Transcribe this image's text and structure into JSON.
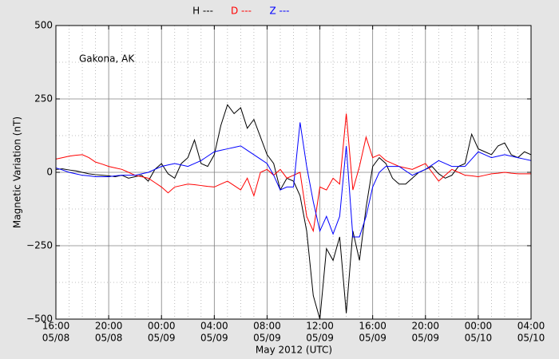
{
  "chart_data": {
    "type": "line",
    "annotation": "Gakona, AK",
    "ylabel": "Magnetic Variation (nT)",
    "xlabel": "May 2012 (UTC)",
    "grid": true,
    "x": [
      "2012-05-08T16:00",
      "2012-05-08T16:30",
      "2012-05-08T17:00",
      "2012-05-08T17:30",
      "2012-05-08T18:00",
      "2012-05-08T18:30",
      "2012-05-08T19:00",
      "2012-05-08T19:30",
      "2012-05-08T20:00",
      "2012-05-08T20:30",
      "2012-05-08T21:00",
      "2012-05-08T21:30",
      "2012-05-08T22:00",
      "2012-05-08T22:30",
      "2012-05-08T23:00",
      "2012-05-08T23:30",
      "2012-05-09T00:00",
      "2012-05-09T00:30",
      "2012-05-09T01:00",
      "2012-05-09T01:30",
      "2012-05-09T02:00",
      "2012-05-09T02:30",
      "2012-05-09T03:00",
      "2012-05-09T03:30",
      "2012-05-09T04:00",
      "2012-05-09T04:30",
      "2012-05-09T05:00",
      "2012-05-09T05:30",
      "2012-05-09T06:00",
      "2012-05-09T06:30",
      "2012-05-09T07:00",
      "2012-05-09T07:30",
      "2012-05-09T08:00",
      "2012-05-09T08:30",
      "2012-05-09T09:00",
      "2012-05-09T09:30",
      "2012-05-09T10:00",
      "2012-05-09T10:30",
      "2012-05-09T11:00",
      "2012-05-09T11:30",
      "2012-05-09T12:00",
      "2012-05-09T12:30",
      "2012-05-09T13:00",
      "2012-05-09T13:30",
      "2012-05-09T14:00",
      "2012-05-09T14:30",
      "2012-05-09T15:00",
      "2012-05-09T15:30",
      "2012-05-09T16:00",
      "2012-05-09T16:30",
      "2012-05-09T17:00",
      "2012-05-09T17:30",
      "2012-05-09T18:00",
      "2012-05-09T18:30",
      "2012-05-09T19:00",
      "2012-05-09T19:30",
      "2012-05-09T20:00",
      "2012-05-09T20:30",
      "2012-05-09T21:00",
      "2012-05-09T21:30",
      "2012-05-09T22:00",
      "2012-05-09T22:30",
      "2012-05-09T23:00",
      "2012-05-09T23:30",
      "2012-05-10T00:00",
      "2012-05-10T00:30",
      "2012-05-10T01:00",
      "2012-05-10T01:30",
      "2012-05-10T02:00",
      "2012-05-10T02:30",
      "2012-05-10T03:00",
      "2012-05-10T03:30",
      "2012-05-10T04:00"
    ],
    "series": [
      {
        "name": "H ---",
        "color": "#000000",
        "values": [
          10,
          12,
          8,
          5,
          0,
          -5,
          -8,
          -10,
          -12,
          -15,
          -10,
          -20,
          -15,
          -10,
          -30,
          10,
          30,
          -5,
          -20,
          30,
          50,
          110,
          30,
          20,
          60,
          160,
          230,
          200,
          220,
          150,
          180,
          120,
          60,
          30,
          -60,
          -20,
          -30,
          -80,
          -200,
          -420,
          -500,
          -260,
          -300,
          -220,
          -480,
          -200,
          -300,
          -120,
          20,
          50,
          30,
          -20,
          -40,
          -40,
          -20,
          0,
          10,
          20,
          -5,
          -20,
          -10,
          20,
          30,
          130,
          80,
          70,
          60,
          90,
          100,
          60,
          50,
          70,
          60
        ]
      },
      {
        "name": "D ---",
        "color": "#ff0000",
        "values": [
          45,
          50,
          55,
          58,
          60,
          50,
          35,
          28,
          20,
          15,
          10,
          0,
          -10,
          -15,
          -20,
          -35,
          -50,
          -70,
          -50,
          -45,
          -40,
          -42,
          -45,
          -48,
          -50,
          -40,
          -30,
          -45,
          -60,
          -20,
          -80,
          0,
          10,
          -10,
          10,
          -20,
          -10,
          0,
          -150,
          -200,
          -50,
          -60,
          -20,
          -40,
          200,
          -60,
          20,
          120,
          50,
          60,
          40,
          30,
          20,
          15,
          10,
          20,
          30,
          0,
          -30,
          -10,
          10,
          0,
          -10,
          -12,
          -15,
          -10,
          -5,
          -3,
          0,
          -3,
          -5,
          -5,
          -5
        ]
      },
      {
        "name": "Z ---",
        "color": "#0000ff",
        "values": [
          15,
          8,
          0,
          -5,
          -10,
          -12,
          -15,
          -15,
          -15,
          -12,
          -10,
          -10,
          -10,
          -5,
          0,
          10,
          20,
          25,
          30,
          25,
          20,
          30,
          40,
          55,
          70,
          75,
          80,
          85,
          90,
          75,
          60,
          45,
          30,
          -10,
          -60,
          -50,
          -50,
          170,
          20,
          -100,
          -200,
          -150,
          -210,
          -150,
          90,
          -220,
          -220,
          -150,
          -50,
          0,
          20,
          20,
          20,
          5,
          -10,
          0,
          10,
          25,
          40,
          30,
          20,
          20,
          20,
          45,
          70,
          60,
          50,
          55,
          60,
          55,
          50,
          45,
          40
        ]
      }
    ],
    "xlim": [
      "2012-05-08T16:00",
      "2012-05-10T04:00"
    ],
    "xticks": [
      {
        "value": "2012-05-08T16:00",
        "label": [
          "16:00",
          "05/08"
        ]
      },
      {
        "value": "2012-05-08T20:00",
        "label": [
          "20:00",
          "05/08"
        ]
      },
      {
        "value": "2012-05-09T00:00",
        "label": [
          "00:00",
          "05/09"
        ]
      },
      {
        "value": "2012-05-09T04:00",
        "label": [
          "04:00",
          "05/09"
        ]
      },
      {
        "value": "2012-05-09T08:00",
        "label": [
          "08:00",
          "05/09"
        ]
      },
      {
        "value": "2012-05-09T12:00",
        "label": [
          "12:00",
          "05/09"
        ]
      },
      {
        "value": "2012-05-09T16:00",
        "label": [
          "16:00",
          "05/09"
        ]
      },
      {
        "value": "2012-05-09T20:00",
        "label": [
          "20:00",
          "05/09"
        ]
      },
      {
        "value": "2012-05-10T00:00",
        "label": [
          "00:00",
          "05/10"
        ]
      },
      {
        "value": "2012-05-10T04:00",
        "label": [
          "04:00",
          "05/10"
        ]
      }
    ],
    "ylim": [
      -500,
      500
    ],
    "yticks": [
      {
        "value": -500,
        "label": "−500"
      },
      {
        "value": -250,
        "label": "−250"
      },
      0,
      250,
      500
    ]
  }
}
